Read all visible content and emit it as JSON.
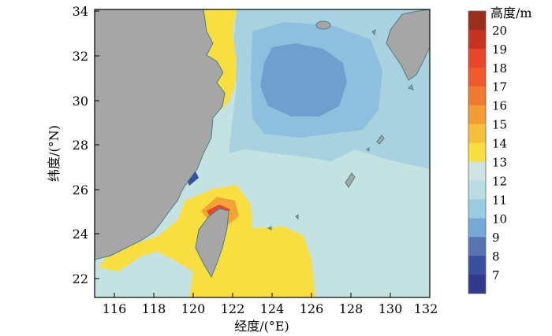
{
  "axes": {
    "x_label": "经度/(°E)",
    "y_label": "纬度/(°N)",
    "x_ticks": [
      "116",
      "118",
      "120",
      "122",
      "124",
      "126",
      "128",
      "130",
      "132"
    ],
    "y_ticks": [
      "22",
      "24",
      "26",
      "28",
      "30",
      "32",
      "34"
    ],
    "x_range": [
      115,
      132
    ],
    "y_range": [
      21,
      34
    ]
  },
  "colorbar": {
    "title": "高度/m",
    "levels": [
      "20",
      "19",
      "18",
      "17",
      "16",
      "15",
      "14",
      "13",
      "12",
      "11",
      "10",
      "9",
      "8",
      "7"
    ],
    "colors": [
      "#9a2f1e",
      "#c8331f",
      "#e8462a",
      "#ef5a2a",
      "#f07a30",
      "#f39c33",
      "#f6bf3a",
      "#f8de3f",
      "#cfe3e3",
      "#b9dbe2",
      "#9bcbe0",
      "#76a9d6",
      "#5673b3",
      "#3a4f9e",
      "#2e3b8f"
    ]
  },
  "colors": {
    "land": "#a6a6a6",
    "land_outline": "#4a7f7f",
    "sea_background": "#bfe0e2"
  }
}
